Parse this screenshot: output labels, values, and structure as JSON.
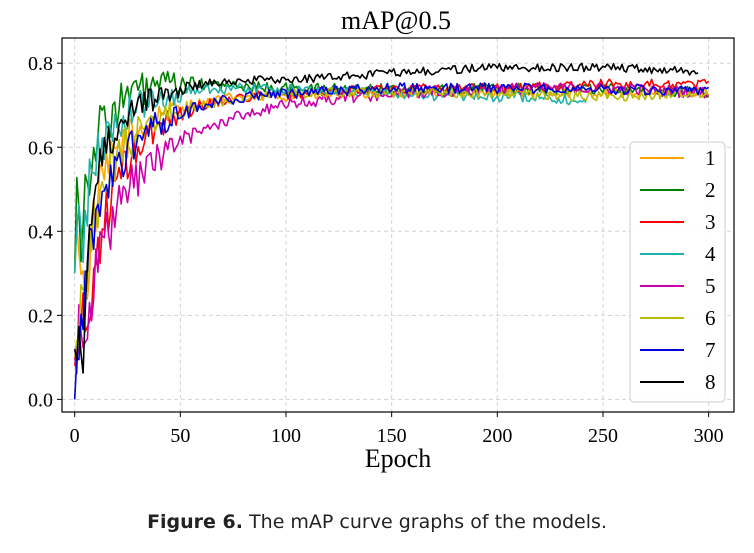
{
  "caption": {
    "label": "Figure 6.",
    "text": " The mAP curve graphs of the models."
  },
  "chart_data": {
    "type": "line",
    "title": "mAP@0.5",
    "xlabel": "Epoch",
    "ylabel": "",
    "xlim": [
      -6,
      312
    ],
    "ylim": [
      -0.03,
      0.86
    ],
    "xticks": [
      0,
      50,
      100,
      150,
      200,
      250,
      300
    ],
    "yticks": [
      0.0,
      0.2,
      0.4,
      0.6,
      0.8
    ],
    "ytick_labels": [
      "0.0",
      "0.2",
      "0.4",
      "0.6",
      "0.8"
    ],
    "grid": true,
    "legend_position": "right",
    "series": [
      {
        "name": "1",
        "color": "#FFA500",
        "end": 300,
        "anchors": [
          [
            0,
            0.33
          ],
          [
            2,
            0.4
          ],
          [
            5,
            0.22
          ],
          [
            8,
            0.4
          ],
          [
            12,
            0.5
          ],
          [
            20,
            0.6
          ],
          [
            30,
            0.64
          ],
          [
            40,
            0.68
          ],
          [
            55,
            0.7
          ],
          [
            75,
            0.72
          ],
          [
            100,
            0.72
          ],
          [
            150,
            0.73
          ],
          [
            200,
            0.73
          ],
          [
            250,
            0.73
          ],
          [
            300,
            0.73
          ]
        ],
        "noise": 0.012
      },
      {
        "name": "2",
        "color": "#008000",
        "end": 300,
        "anchors": [
          [
            0,
            0.3
          ],
          [
            1,
            0.58
          ],
          [
            3,
            0.38
          ],
          [
            5,
            0.5
          ],
          [
            8,
            0.58
          ],
          [
            12,
            0.64
          ],
          [
            18,
            0.69
          ],
          [
            28,
            0.73
          ],
          [
            40,
            0.75
          ],
          [
            60,
            0.75
          ],
          [
            100,
            0.74
          ],
          [
            150,
            0.74
          ],
          [
            200,
            0.74
          ],
          [
            250,
            0.74
          ],
          [
            300,
            0.73
          ]
        ],
        "noise": 0.013
      },
      {
        "name": "3",
        "color": "#FF0000",
        "end": 300,
        "anchors": [
          [
            0,
            0.08
          ],
          [
            3,
            0.2
          ],
          [
            6,
            0.16
          ],
          [
            10,
            0.34
          ],
          [
            15,
            0.44
          ],
          [
            20,
            0.52
          ],
          [
            30,
            0.6
          ],
          [
            45,
            0.67
          ],
          [
            60,
            0.7
          ],
          [
            80,
            0.72
          ],
          [
            110,
            0.73
          ],
          [
            150,
            0.74
          ],
          [
            200,
            0.74
          ],
          [
            250,
            0.75
          ],
          [
            300,
            0.75
          ]
        ],
        "noise": 0.012
      },
      {
        "name": "4",
        "color": "#20B2AA",
        "end": 242,
        "anchors": [
          [
            0,
            0.3
          ],
          [
            2,
            0.43
          ],
          [
            4,
            0.38
          ],
          [
            8,
            0.55
          ],
          [
            12,
            0.6
          ],
          [
            20,
            0.66
          ],
          [
            30,
            0.7
          ],
          [
            45,
            0.72
          ],
          [
            60,
            0.74
          ],
          [
            90,
            0.74
          ],
          [
            140,
            0.73
          ],
          [
            180,
            0.72
          ],
          [
            220,
            0.72
          ],
          [
            242,
            0.71
          ]
        ],
        "noise": 0.012
      },
      {
        "name": "5",
        "color": "#CC00AA",
        "end": 300,
        "anchors": [
          [
            0,
            0.1
          ],
          [
            3,
            0.18
          ],
          [
            6,
            0.22
          ],
          [
            10,
            0.3
          ],
          [
            15,
            0.38
          ],
          [
            20,
            0.45
          ],
          [
            30,
            0.53
          ],
          [
            45,
            0.6
          ],
          [
            60,
            0.64
          ],
          [
            80,
            0.68
          ],
          [
            100,
            0.7
          ],
          [
            130,
            0.72
          ],
          [
            160,
            0.73
          ],
          [
            200,
            0.74
          ],
          [
            250,
            0.74
          ],
          [
            300,
            0.73
          ]
        ],
        "noise": 0.014
      },
      {
        "name": "6",
        "color": "#BBBB00",
        "end": 300,
        "anchors": [
          [
            0,
            0.1
          ],
          [
            3,
            0.25
          ],
          [
            6,
            0.32
          ],
          [
            10,
            0.45
          ],
          [
            15,
            0.52
          ],
          [
            20,
            0.58
          ],
          [
            30,
            0.64
          ],
          [
            45,
            0.68
          ],
          [
            60,
            0.7
          ],
          [
            80,
            0.72
          ],
          [
            110,
            0.73
          ],
          [
            150,
            0.73
          ],
          [
            200,
            0.73
          ],
          [
            250,
            0.72
          ],
          [
            300,
            0.73
          ]
        ],
        "noise": 0.012
      },
      {
        "name": "7",
        "color": "#0000DD",
        "end": 300,
        "anchors": [
          [
            0,
            0.0
          ],
          [
            2,
            0.12
          ],
          [
            4,
            0.18
          ],
          [
            7,
            0.35
          ],
          [
            10,
            0.42
          ],
          [
            15,
            0.5
          ],
          [
            20,
            0.56
          ],
          [
            30,
            0.62
          ],
          [
            45,
            0.67
          ],
          [
            60,
            0.7
          ],
          [
            80,
            0.72
          ],
          [
            110,
            0.73
          ],
          [
            150,
            0.74
          ],
          [
            200,
            0.74
          ],
          [
            250,
            0.74
          ],
          [
            300,
            0.73
          ]
        ],
        "noise": 0.013
      },
      {
        "name": "8",
        "color": "#000000",
        "end": 295,
        "anchors": [
          [
            0,
            0.12
          ],
          [
            2,
            0.17
          ],
          [
            4,
            0.08
          ],
          [
            6,
            0.35
          ],
          [
            10,
            0.52
          ],
          [
            15,
            0.6
          ],
          [
            20,
            0.65
          ],
          [
            30,
            0.7
          ],
          [
            45,
            0.73
          ],
          [
            60,
            0.75
          ],
          [
            80,
            0.76
          ],
          [
            100,
            0.76
          ],
          [
            130,
            0.77
          ],
          [
            160,
            0.78
          ],
          [
            200,
            0.79
          ],
          [
            250,
            0.79
          ],
          [
            295,
            0.78
          ]
        ],
        "noise": 0.01
      }
    ]
  }
}
